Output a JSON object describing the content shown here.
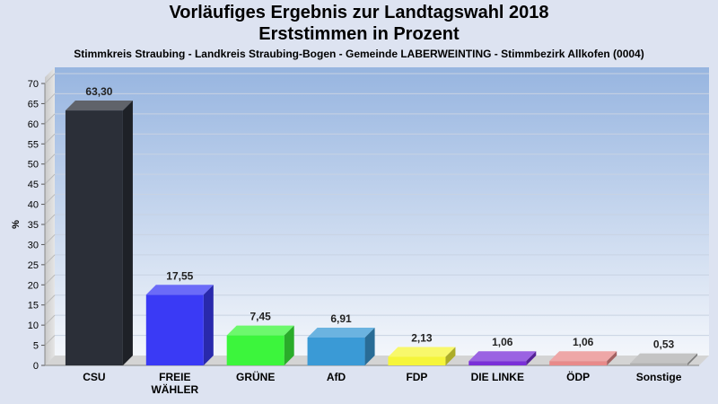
{
  "header": {
    "title_line1": "Vorläufiges Ergebnis zur Landtagswahl 2018",
    "title_line2": "Erststimmen in Prozent",
    "subtitle": "Stimmkreis Straubing - Landkreis Straubing-Bogen - Gemeinde LABERWEINTING - Stimmbezirk Allkofen (0004)"
  },
  "chart_data": {
    "type": "bar",
    "title": "Vorläufiges Ergebnis zur Landtagswahl 2018 Erststimmen in Prozent",
    "subtitle": "Stimmkreis Straubing - Landkreis Straubing-Bogen - Gemeinde LABERWEINTING - Stimmbezirk Allkofen (0004)",
    "ylabel": "%",
    "xlabel": "",
    "ylim": [
      0,
      70
    ],
    "yticks": [
      0,
      5,
      10,
      15,
      20,
      25,
      30,
      35,
      40,
      45,
      50,
      55,
      60,
      65,
      70
    ],
    "grid": true,
    "categories": [
      [
        "CSU"
      ],
      [
        "FREIE",
        "WÄHLER"
      ],
      [
        "GRÜNE"
      ],
      [
        "AfD"
      ],
      [
        "FDP"
      ],
      [
        "DIE LINKE"
      ],
      [
        "ÖDP"
      ],
      [
        "Sonstige"
      ]
    ],
    "values": [
      63.3,
      17.55,
      7.45,
      6.91,
      2.13,
      1.06,
      1.06,
      0.53
    ],
    "value_labels": [
      "63,30",
      "17,55",
      "7,45",
      "6,91",
      "2,13",
      "1,06",
      "1,06",
      "0,53"
    ],
    "colors": [
      "#2b2f38",
      "#3a3af5",
      "#3cf53c",
      "#3a9ad6",
      "#f5f53a",
      "#7a2fd8",
      "#e88a8a",
      "#b0b0b0"
    ]
  }
}
